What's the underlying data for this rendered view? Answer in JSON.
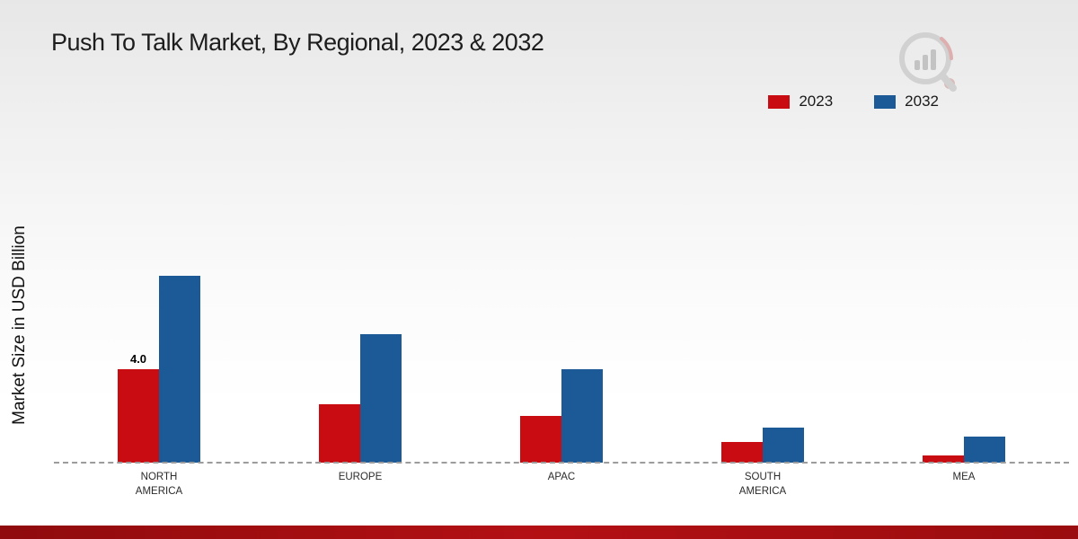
{
  "page": {
    "title": "Push To Talk Market, By Regional, 2023 & 2032"
  },
  "chart_data": {
    "type": "bar",
    "title": "Push To Talk Market, By Regional, 2023 & 2032",
    "xlabel": "",
    "ylabel": "Market Size in USD Billion",
    "categories": [
      "NORTH AMERICA",
      "EUROPE",
      "APAC",
      "SOUTH AMERICA",
      "MEA"
    ],
    "series": [
      {
        "name": "2023",
        "color": "#c90c11",
        "values": [
          4.0,
          2.5,
          2.0,
          0.9,
          0.3
        ]
      },
      {
        "name": "2032",
        "color": "#1b5a96",
        "values": [
          8.0,
          5.5,
          4.0,
          1.5,
          1.1
        ]
      }
    ],
    "bar_labels": [
      [
        "4.0",
        "",
        "",
        "",
        ""
      ],
      [
        "",
        "",
        "",
        "",
        ""
      ]
    ],
    "ylim": [
      0,
      10
    ],
    "grid": false,
    "baseline_style": "dashed",
    "legend_position": "top-right"
  }
}
